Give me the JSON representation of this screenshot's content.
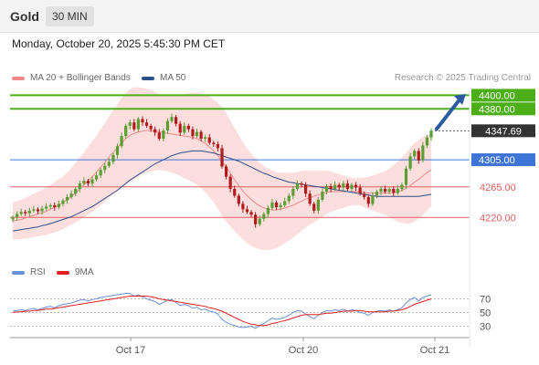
{
  "header": {
    "symbol": "Gold",
    "timeframe": "30 MIN"
  },
  "datetime": "Monday, October 20, 2025 5:45:30 PM CET",
  "legend": [
    {
      "label": "MA 20 + Bollinger Bands",
      "color": "#f08a8a"
    },
    {
      "label": "MA 50",
      "color": "#2c4f86"
    }
  ],
  "credit": "Research © 2025 Trading Central",
  "levels": [
    {
      "value": 4400.0,
      "label": "4400.00",
      "color": "#4caf1a",
      "kind": "resistance"
    },
    {
      "value": 4380.0,
      "label": "4380.00",
      "color": "#4caf1a",
      "kind": "resistance"
    },
    {
      "value": 4347.69,
      "label": "4347.69",
      "color": "#333333",
      "kind": "last"
    },
    {
      "value": 4305.0,
      "label": "4305.00",
      "color": "#3e74d6",
      "kind": "pivot"
    },
    {
      "value": 4265.0,
      "label": "4265.00",
      "color": "#e06060",
      "kind": "support"
    },
    {
      "value": 4220.0,
      "label": "4220.00",
      "color": "#e06060",
      "kind": "support"
    }
  ],
  "rsi_legend": [
    {
      "label": "RSI",
      "color": "#6b8fd6"
    },
    {
      "label": "9MA",
      "color": "#e02020"
    }
  ],
  "chart_data": {
    "type": "candlestick",
    "xlabels": [
      "Oct 17",
      "Oct 20",
      "Oct 21"
    ],
    "price_ylim": [
      4180,
      4410
    ],
    "closes": [
      4220,
      4225,
      4228,
      4226,
      4230,
      4232,
      4229,
      4233,
      4236,
      4238,
      4235,
      4240,
      4245,
      4250,
      4255,
      4262,
      4270,
      4274,
      4270,
      4276,
      4282,
      4290,
      4296,
      4302,
      4312,
      4325,
      4340,
      4355,
      4360,
      4350,
      4365,
      4360,
      4355,
      4350,
      4345,
      4336,
      4348,
      4362,
      4368,
      4358,
      4345,
      4355,
      4350,
      4340,
      4346,
      4336,
      4338,
      4330,
      4328,
      4322,
      4295,
      4280,
      4262,
      4252,
      4240,
      4232,
      4228,
      4224,
      4210,
      4218,
      4225,
      4234,
      4242,
      4235,
      4238,
      4244,
      4252,
      4262,
      4270,
      4268,
      4255,
      4240,
      4230,
      4246,
      4258,
      4266,
      4262,
      4268,
      4264,
      4270,
      4262,
      4268,
      4264,
      4255,
      4250,
      4240,
      4252,
      4258,
      4262,
      4258,
      4262,
      4256,
      4262,
      4268,
      4292,
      4310,
      4318,
      4304,
      4326,
      4338,
      4347.69
    ],
    "ma20": [
      4215,
      4216,
      4217,
      4219,
      4221,
      4223,
      4225,
      4227,
      4229,
      4232,
      4235,
      4238,
      4242,
      4246,
      4251,
      4256,
      4262,
      4268,
      4274,
      4280,
      4287,
      4294,
      4301,
      4309,
      4316,
      4323,
      4330,
      4336,
      4341,
      4344,
      4346,
      4347,
      4348,
      4348,
      4347,
      4346,
      4345,
      4344,
      4343,
      4342,
      4341,
      4340,
      4339,
      4338,
      4336,
      4333,
      4329,
      4324,
      4318,
      4311,
      4303,
      4294,
      4285,
      4276,
      4267,
      4259,
      4252,
      4246,
      4241,
      4237,
      4234,
      4232,
      4231,
      4231,
      4232,
      4234,
      4236,
      4238,
      4241,
      4244,
      4247,
      4249,
      4251,
      4253,
      4255,
      4257,
      4258,
      4258,
      4258,
      4258,
      4258,
      4258,
      4258,
      4258,
      4257,
      4256,
      4256,
      4256,
      4256,
      4256,
      4256,
      4257,
      4258,
      4260,
      4263,
      4267,
      4272,
      4276,
      4281,
      4286,
      4290
    ],
    "ma50": [
      4200,
      4201,
      4202,
      4203,
      4204,
      4205,
      4206,
      4208,
      4209,
      4211,
      4213,
      4215,
      4217,
      4219,
      4221,
      4224,
      4227,
      4230,
      4233,
      4236,
      4240,
      4244,
      4248,
      4252,
      4256,
      4260,
      4265,
      4270,
      4275,
      4279,
      4283,
      4287,
      4291,
      4295,
      4299,
      4302,
      4305,
      4308,
      4311,
      4313,
      4315,
      4316,
      4317,
      4318,
      4318,
      4318,
      4317,
      4316,
      4315,
      4313,
      4311,
      4309,
      4307,
      4305,
      4303,
      4300,
      4297,
      4294,
      4291,
      4288,
      4285,
      4283,
      4280,
      4278,
      4276,
      4274,
      4272,
      4271,
      4270,
      4269,
      4268,
      4267,
      4266,
      4265,
      4264,
      4263,
      4262,
      4261,
      4260,
      4259,
      4258,
      4257,
      4256,
      4255,
      4254,
      4253,
      4252,
      4251,
      4251,
      4251,
      4251,
      4251,
      4251,
      4251,
      4251,
      4251,
      4251,
      4251,
      4252,
      4253,
      4254
    ],
    "bb_width": [
      28,
      28,
      29,
      30,
      31,
      32,
      33,
      34,
      35,
      36,
      37,
      38,
      39,
      40,
      42,
      44,
      46,
      48,
      50,
      52,
      54,
      56,
      58,
      60,
      62,
      64,
      66,
      68,
      68,
      68,
      66,
      64,
      62,
      60,
      58,
      56,
      56,
      56,
      57,
      58,
      60,
      62,
      64,
      66,
      68,
      70,
      72,
      74,
      76,
      78,
      80,
      80,
      78,
      76,
      74,
      72,
      70,
      68,
      66,
      64,
      62,
      60,
      58,
      56,
      54,
      52,
      50,
      48,
      46,
      44,
      42,
      40,
      38,
      36,
      34,
      32,
      30,
      28,
      26,
      24,
      22,
      20,
      20,
      20,
      22,
      24,
      26,
      28,
      30,
      32,
      36,
      40,
      44,
      48,
      52,
      56,
      58,
      58,
      58,
      56,
      54
    ],
    "rsi_ylim": [
      20,
      80
    ],
    "rsi_ticks": [
      70,
      50,
      30
    ],
    "rsi": [
      52,
      53,
      54,
      53,
      55,
      56,
      54,
      56,
      58,
      59,
      57,
      60,
      62,
      63,
      64,
      66,
      68,
      69,
      67,
      69,
      70,
      72,
      73,
      74,
      75,
      76,
      77,
      78,
      78,
      74,
      76,
      73,
      70,
      68,
      66,
      62,
      65,
      68,
      69,
      65,
      60,
      62,
      60,
      56,
      58,
      54,
      55,
      52,
      51,
      48,
      40,
      36,
      33,
      31,
      29,
      28,
      29,
      30,
      27,
      31,
      34,
      38,
      42,
      40,
      41,
      43,
      46,
      50,
      53,
      52,
      48,
      44,
      41,
      46,
      50,
      53,
      52,
      54,
      53,
      55,
      52,
      54,
      53,
      50,
      49,
      46,
      50,
      52,
      53,
      52,
      54,
      52,
      54,
      57,
      64,
      69,
      72,
      67,
      72,
      74,
      76
    ],
    "rsi_ma": [
      50,
      51,
      51,
      52,
      52,
      53,
      53,
      54,
      55,
      55,
      56,
      57,
      58,
      59,
      60,
      61,
      62,
      63,
      64,
      65,
      66,
      67,
      68,
      69,
      70,
      71,
      72,
      73,
      74,
      74,
      74,
      74,
      74,
      73,
      72,
      70,
      69,
      68,
      67,
      66,
      65,
      64,
      63,
      62,
      61,
      60,
      59,
      57,
      56,
      54,
      52,
      49,
      46,
      43,
      40,
      37,
      35,
      33,
      32,
      31,
      31,
      32,
      34,
      35,
      37,
      38,
      40,
      42,
      44,
      46,
      47,
      47,
      47,
      47,
      48,
      49,
      49,
      50,
      51,
      52,
      52,
      52,
      53,
      53,
      52,
      51,
      51,
      51,
      51,
      51,
      52,
      52,
      53,
      54,
      56,
      59,
      62,
      64,
      66,
      68,
      70
    ]
  }
}
